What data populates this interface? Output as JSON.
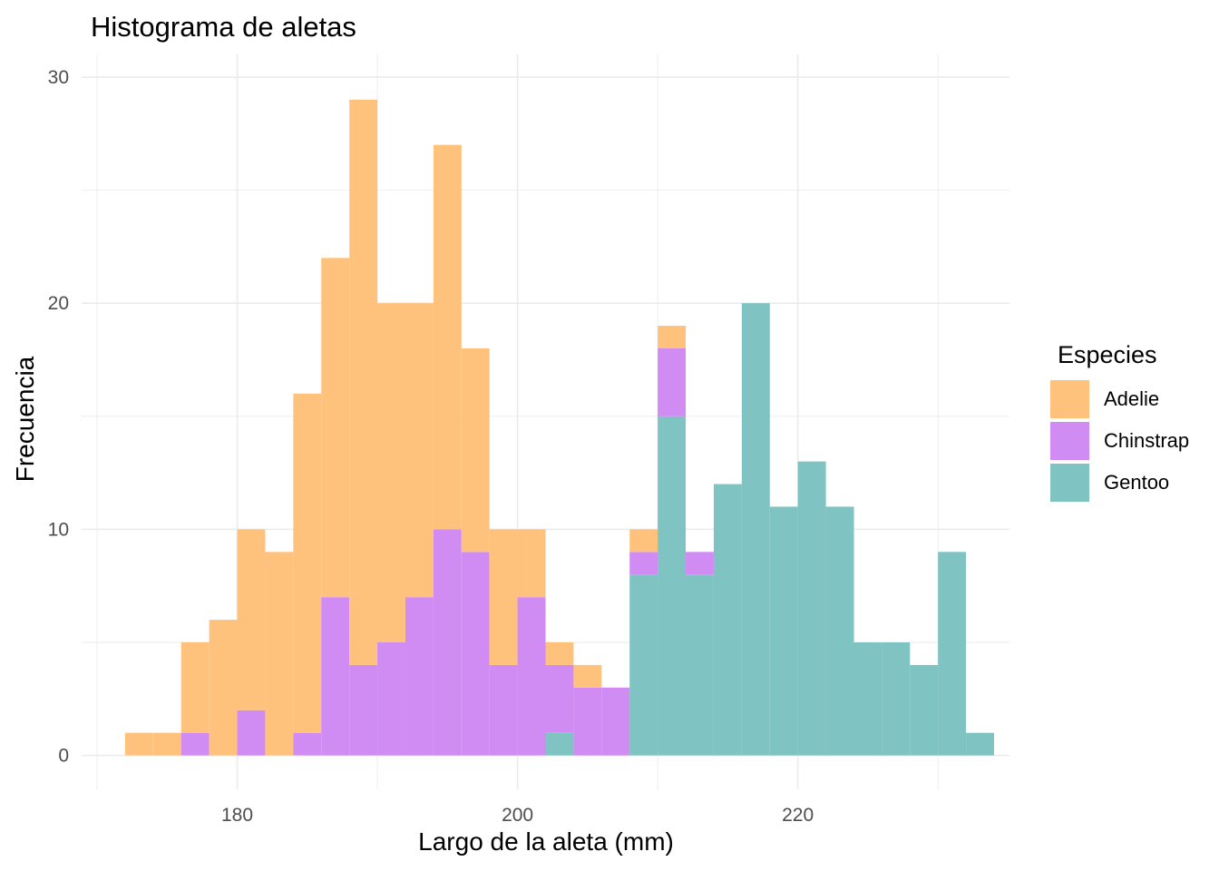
{
  "chart_data": {
    "type": "bar",
    "title": "Histograma de aletas",
    "xlabel": "Largo de la aleta (mm)",
    "ylabel": "Frecuencia",
    "xlim": [
      168.9,
      235.1
    ],
    "ylim": [
      -1.5,
      31
    ],
    "x_ticks": [
      180,
      200,
      220
    ],
    "y_ticks": [
      0,
      10,
      20,
      30
    ],
    "grid": true,
    "legend": {
      "title": "Especies",
      "placement": "right"
    },
    "bin_start": 172,
    "bin_width": 2,
    "stacked": true,
    "series": [
      {
        "name": "Gentoo",
        "color": "#7fc3c3",
        "values": [
          0,
          0,
          0,
          0,
          0,
          0,
          0,
          0,
          0,
          0,
          0,
          0,
          0,
          0,
          0,
          1,
          0,
          0,
          8,
          15,
          8,
          12,
          20,
          11,
          13,
          11,
          5,
          5,
          4,
          9,
          1
        ]
      },
      {
        "name": "Chinstrap",
        "color": "#d18cf4",
        "values": [
          0,
          0,
          1,
          0,
          2,
          0,
          1,
          7,
          4,
          5,
          7,
          10,
          9,
          4,
          7,
          3,
          3,
          3,
          1,
          3,
          1,
          0,
          0,
          0,
          0,
          0,
          0,
          0,
          0,
          0,
          0
        ]
      },
      {
        "name": "Adelie",
        "color": "#ffc27d",
        "values": [
          1,
          1,
          4,
          6,
          8,
          9,
          15,
          15,
          25,
          15,
          13,
          17,
          9,
          6,
          3,
          1,
          1,
          0,
          1,
          1,
          0,
          0,
          0,
          0,
          0,
          0,
          0,
          0,
          0,
          0,
          0
        ]
      }
    ]
  }
}
